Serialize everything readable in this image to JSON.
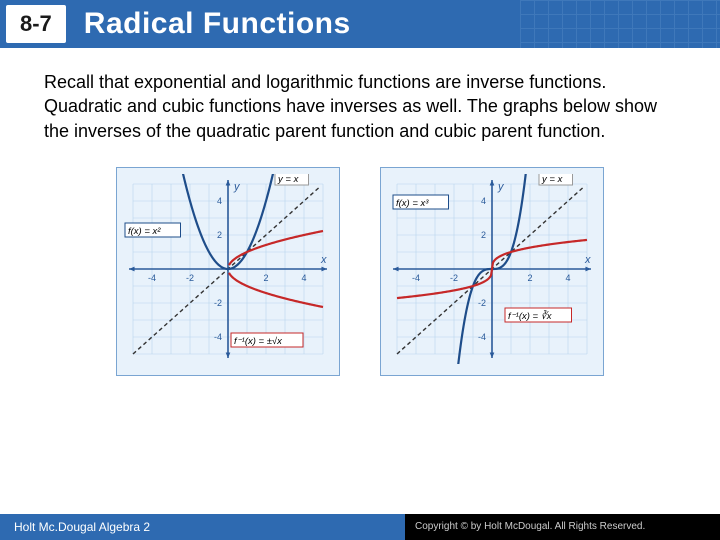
{
  "header": {
    "section_number": "8-7",
    "title": "Radical Functions",
    "bg_color": "#2e6ab1"
  },
  "body": {
    "paragraph": "Recall that exponential and logarithmic functions are inverse functions. Quadratic and cubic functions have inverses as well. The graphs below show the inverses of the quadratic parent function and cubic parent function."
  },
  "graphs": {
    "left": {
      "xlim": [
        -5,
        5
      ],
      "ylim": [
        -5,
        5
      ],
      "tick_step": 2,
      "grid_color": "#b8d4ee",
      "axis_color": "#2a5a9a",
      "parent_color": "#1e4d8a",
      "inverse_color": "#c62828",
      "identity_color": "#333333",
      "bg_color": "#e8f2fb",
      "label_parent": "f(x) = x²",
      "label_inverse": "f⁻¹(x) = ±√x",
      "label_identity": "y = x",
      "x_label": "x",
      "y_label": "y"
    },
    "right": {
      "xlim": [
        -5,
        5
      ],
      "ylim": [
        -5,
        5
      ],
      "tick_step": 2,
      "grid_color": "#b8d4ee",
      "axis_color": "#2a5a9a",
      "parent_color": "#1e4d8a",
      "inverse_color": "#c62828",
      "identity_color": "#333333",
      "bg_color": "#e8f2fb",
      "label_parent": "f(x) = x³",
      "label_inverse": "f⁻¹(x) = ∛x",
      "label_identity": "y = x",
      "x_label": "x",
      "y_label": "y"
    }
  },
  "footer": {
    "left": "Holt Mc.Dougal Algebra 2",
    "right": "Copyright © by Holt McDougal. All Rights Reserved."
  }
}
